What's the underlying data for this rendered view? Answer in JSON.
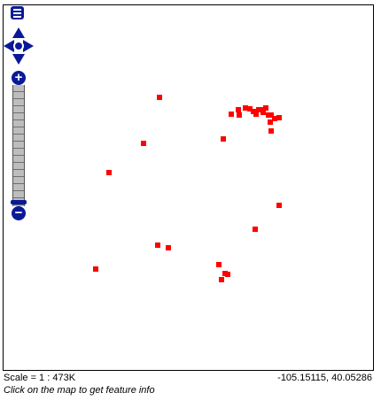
{
  "footer": {
    "scale_label": "Scale = 1 : 473K",
    "coordinates": "-105.15115, 40.05286",
    "hint": "Click on the map to get feature info"
  },
  "controls": {
    "zoom_in_glyph": "+",
    "zoom_out_glyph": "−",
    "icons": [
      "layers-icon",
      "pan-up-icon",
      "pan-down-icon",
      "pan-left-icon",
      "pan-right-icon",
      "zoom-in-icon",
      "zoom-out-icon"
    ]
  },
  "colors": {
    "feature": "#ff0000",
    "control": "#0a1a96"
  }
}
